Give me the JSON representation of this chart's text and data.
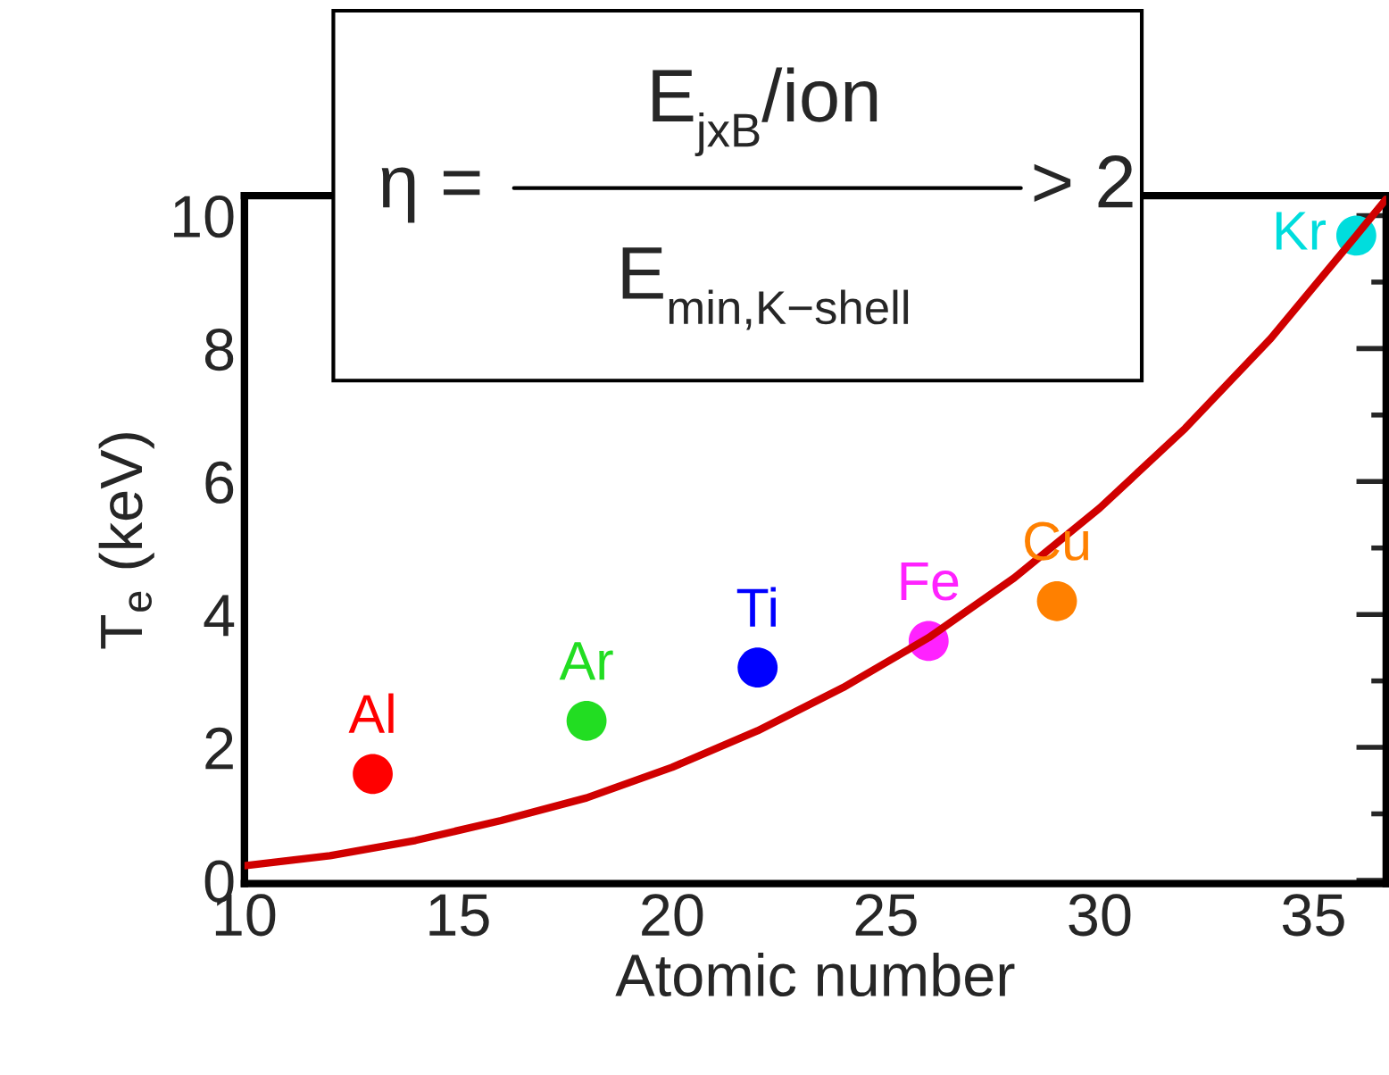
{
  "chart_data": {
    "type": "scatter",
    "xlabel": "Atomic number",
    "ylabel": "T$_{e}$ (keV)",
    "xlim": [
      10,
      36.7
    ],
    "ylim": [
      -0.05,
      10.3
    ],
    "xticks": [
      10,
      15,
      20,
      25,
      30,
      35
    ],
    "yticks": [
      0,
      2,
      4,
      6,
      8,
      10
    ],
    "grid": false,
    "legend": false,
    "marker": "circle",
    "series": [
      {
        "name": "Al",
        "color": "#ff0000",
        "x": [
          13
        ],
        "values": [
          1.6
        ]
      },
      {
        "name": "Ar",
        "color": "#22dd22",
        "x": [
          18
        ],
        "values": [
          2.4
        ]
      },
      {
        "name": "Ti",
        "color": "#0000ff",
        "x": [
          22
        ],
        "values": [
          3.2
        ]
      },
      {
        "name": "Fe",
        "color": "#ff22ff",
        "x": [
          26
        ],
        "values": [
          3.6
        ]
      },
      {
        "name": "Cu",
        "color": "#ff8000",
        "x": [
          29
        ],
        "values": [
          4.2
        ]
      },
      {
        "name": "Kr",
        "color": "#00dddd",
        "x": [
          36
        ],
        "values": [
          9.7
        ]
      },
      {
        "type": "line",
        "color": "#d00000",
        "marker": "none",
        "line_style": "solid",
        "x": [
          10,
          12,
          14,
          16,
          18,
          20,
          22,
          24,
          26,
          28,
          30,
          32,
          34,
          36,
          36.7
        ],
        "values": [
          0.22,
          0.37,
          0.6,
          0.9,
          1.24,
          1.7,
          2.25,
          2.9,
          3.65,
          4.55,
          5.6,
          6.8,
          8.15,
          9.7,
          10.25
        ]
      }
    ],
    "annotations": [
      "η =",
      "E$_{jxB}$/ion",
      "E$_{min,K−shell}$",
      "> 2"
    ]
  }
}
